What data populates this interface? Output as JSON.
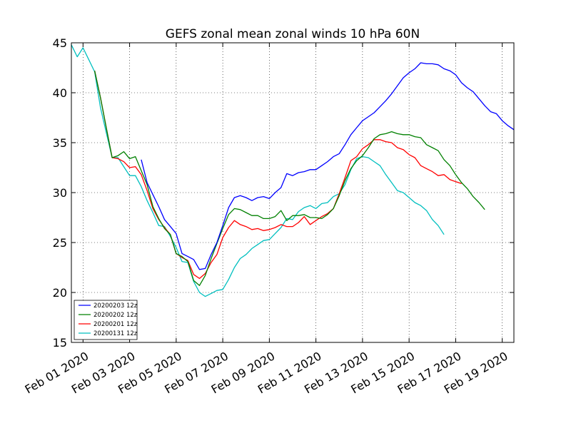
{
  "chart_data": {
    "type": "line",
    "title": "GEFS zonal mean zonal winds 10 hPa 60N",
    "xlabel": "",
    "ylabel": "",
    "x_unit": "days since Jan 31 2020 12z",
    "xlim": [
      0,
      19
    ],
    "ylim": [
      15,
      45
    ],
    "grid": true,
    "legend_position": "lower-left",
    "y_ticks": [
      15,
      20,
      25,
      30,
      35,
      40,
      45
    ],
    "x_ticks": [
      {
        "x": 0.5,
        "label": "Feb 01 2020"
      },
      {
        "x": 2.5,
        "label": "Feb 03 2020"
      },
      {
        "x": 4.5,
        "label": "Feb 05 2020"
      },
      {
        "x": 6.5,
        "label": "Feb 07 2020"
      },
      {
        "x": 8.5,
        "label": "Feb 09 2020"
      },
      {
        "x": 10.5,
        "label": "Feb 11 2020"
      },
      {
        "x": 12.5,
        "label": "Feb 13 2020"
      },
      {
        "x": 14.5,
        "label": "Feb 15 2020"
      },
      {
        "x": 16.5,
        "label": "Feb 17 2020"
      },
      {
        "x": 18.5,
        "label": "Feb 19 2020"
      }
    ],
    "series": [
      {
        "name": "20200203 12z",
        "color": "#0000ff",
        "x": [
          3,
          3.25,
          3.5,
          3.75,
          4,
          4.25,
          4.5,
          4.75,
          5,
          5.25,
          5.5,
          5.75,
          6,
          6.25,
          6.5,
          6.75,
          7,
          7.25,
          7.5,
          7.75,
          8,
          8.25,
          8.5,
          8.75,
          9,
          9.25,
          9.5,
          9.75,
          10,
          10.25,
          10.5,
          10.75,
          11,
          11.25,
          11.5,
          11.75,
          12,
          12.25,
          12.5,
          12.75,
          13,
          13.25,
          13.5,
          13.75,
          14,
          14.25,
          14.5,
          14.75,
          15,
          15.25,
          15.5,
          15.75,
          16,
          16.25,
          16.5,
          16.75,
          17,
          17.25,
          17.5,
          17.75,
          18,
          18.25,
          18.5,
          18.75,
          19
        ],
        "values": [
          33.3,
          31,
          29.8,
          28.6,
          27.3,
          26.6,
          25.9,
          23.9,
          23.6,
          23.3,
          22.3,
          22.4,
          23.8,
          25,
          26.7,
          28.5,
          29.5,
          29.7,
          29.5,
          29.2,
          29.5,
          29.6,
          29.4,
          30,
          30.5,
          31.9,
          31.7,
          32,
          32.1,
          32.3,
          32.3,
          32.7,
          33.1,
          33.6,
          33.9,
          34.8,
          35.8,
          36.5,
          37.2,
          37.6,
          38,
          38.6,
          39.2,
          39.9,
          40.7,
          41.5,
          42,
          42.4,
          43,
          42.9,
          42.9,
          42.8,
          42.4,
          42.2,
          41.8,
          41,
          40.5,
          40.1,
          39.4,
          38.7,
          38.1,
          37.9,
          37.2,
          36.7,
          36.3
        ]
      },
      {
        "name": "20200202 12z",
        "color": "#008000",
        "x": [
          1,
          1.25,
          1.5,
          1.75,
          2,
          2.25,
          2.5,
          2.75,
          3,
          3.25,
          3.5,
          3.75,
          4,
          4.25,
          4.5,
          4.75,
          5,
          5.25,
          5.5,
          5.75,
          6,
          6.25,
          6.5,
          6.75,
          7,
          7.25,
          7.5,
          7.75,
          8,
          8.25,
          8.5,
          8.75,
          9,
          9.25,
          9.5,
          9.75,
          10,
          10.25,
          10.5,
          10.75,
          11,
          11.25,
          11.5,
          11.75,
          12,
          12.25,
          12.5,
          12.75,
          13,
          13.25,
          13.5,
          13.75,
          14,
          14.25,
          14.5,
          14.75,
          15,
          15.25,
          15.5,
          15.75,
          16,
          16.25,
          16.5,
          16.75,
          17,
          17.25,
          17.5,
          17.75
        ],
        "values": [
          42.2,
          39.5,
          36.5,
          33.5,
          33.7,
          34.1,
          33.4,
          33.6,
          32.2,
          30.8,
          28.6,
          27.4,
          26.4,
          25.8,
          23.9,
          23.6,
          23.1,
          21.2,
          20.7,
          21.7,
          23.4,
          24.9,
          26.4,
          27.8,
          28.4,
          28.3,
          28,
          27.7,
          27.7,
          27.4,
          27.4,
          27.6,
          28.2,
          27.2,
          27.7,
          27.7,
          27.8,
          27.5,
          27.5,
          27.4,
          27.8,
          28.4,
          29.7,
          31.2,
          32.4,
          33.2,
          33.7,
          34.5,
          35.4,
          35.8,
          35.9,
          36.1,
          35.9,
          35.8,
          35.8,
          35.6,
          35.5,
          34.8,
          34.5,
          34.2,
          33.3,
          32.7,
          31.8,
          31,
          30.4,
          29.6,
          29,
          28.3
        ]
      },
      {
        "name": "20200201 12z",
        "color": "#ff0000",
        "x": [
          1,
          1.25,
          1.5,
          1.75,
          2,
          2.25,
          2.5,
          2.75,
          3,
          3.25,
          3.5,
          3.75,
          4,
          4.25,
          4.5,
          4.75,
          5,
          5.25,
          5.5,
          5.75,
          6,
          6.25,
          6.5,
          6.75,
          7,
          7.25,
          7.5,
          7.75,
          8,
          8.25,
          8.5,
          8.75,
          9,
          9.25,
          9.5,
          9.75,
          10,
          10.25,
          10.5,
          10.75,
          11,
          11.25,
          11.5,
          11.75,
          12,
          12.25,
          12.5,
          12.75,
          13,
          13.25,
          13.5,
          13.75,
          14,
          14.25,
          14.5,
          14.75,
          15,
          15.25,
          15.5,
          15.75,
          16,
          16.25,
          16.5,
          16.75
        ],
        "values": [
          42.2,
          39.5,
          36.5,
          33.5,
          33.4,
          33.1,
          32.5,
          32.6,
          31.8,
          30.2,
          28.4,
          27.3,
          26.5,
          25.8,
          23.9,
          23.5,
          23.2,
          21.8,
          21.4,
          21.9,
          23,
          23.8,
          25.5,
          26.5,
          27.2,
          26.8,
          26.6,
          26.3,
          26.4,
          26.2,
          26.3,
          26.5,
          26.8,
          26.6,
          26.6,
          27,
          27.6,
          26.8,
          27.2,
          27.6,
          27.9,
          28.4,
          29.9,
          31.5,
          33.2,
          33.6,
          34.4,
          34.8,
          35.3,
          35.3,
          35.1,
          35,
          34.5,
          34.3,
          33.8,
          33.5,
          32.7,
          32.4,
          32.1,
          31.7,
          31.8,
          31.3,
          31.1,
          30.9
        ]
      },
      {
        "name": "20200131 12z",
        "color": "#00bfbf",
        "x": [
          0,
          0.25,
          0.5,
          0.75,
          1,
          1.25,
          1.5,
          1.75,
          2,
          2.25,
          2.5,
          2.75,
          3,
          3.25,
          3.5,
          3.75,
          4,
          4.25,
          4.5,
          4.75,
          5,
          5.25,
          5.5,
          5.75,
          6,
          6.25,
          6.5,
          6.75,
          7,
          7.25,
          7.5,
          7.75,
          8,
          8.25,
          8.5,
          8.75,
          9,
          9.25,
          9.5,
          9.75,
          10,
          10.25,
          10.5,
          10.75,
          11,
          11.25,
          11.5,
          11.75,
          12,
          12.25,
          12.5,
          12.75,
          13,
          13.25,
          13.5,
          13.75,
          14,
          14.25,
          14.5,
          14.75,
          15,
          15.25,
          15.5,
          15.75,
          16
        ],
        "values": [
          44.8,
          43.6,
          44.5,
          43.3,
          42.1,
          38.5,
          36,
          33.5,
          33.5,
          32.6,
          31.7,
          31.7,
          30.6,
          29.2,
          28,
          26.7,
          26.6,
          25.6,
          24.5,
          23.1,
          23,
          21.1,
          20,
          19.6,
          19.9,
          20.2,
          20.3,
          21.3,
          22.5,
          23.4,
          23.8,
          24.4,
          24.8,
          25.2,
          25.3,
          25.9,
          26.5,
          27.4,
          27.3,
          28.1,
          28.5,
          28.7,
          28.4,
          28.9,
          29,
          29.6,
          29.9,
          30.8,
          32.3,
          33.4,
          33.6,
          33.5,
          33.1,
          32.7,
          31.8,
          31,
          30.2,
          30,
          29.5,
          29,
          28.7,
          28.2,
          27.3,
          26.7,
          25.8
        ]
      }
    ]
  }
}
